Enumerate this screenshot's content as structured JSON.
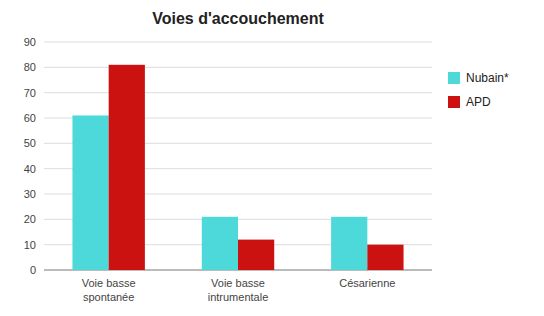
{
  "chart_data": {
    "type": "bar",
    "title": "Voies d'accouchement",
    "categories": [
      "Voie basse\nspontanée",
      "Voie basse\nintrumentale",
      "Césarienne"
    ],
    "series": [
      {
        "name": "Nubain*",
        "color": "#4DD9D9",
        "values": [
          61,
          21,
          21
        ]
      },
      {
        "name": "APD",
        "color": "#CC1111",
        "values": [
          81,
          12,
          10
        ]
      }
    ],
    "ylim": [
      0,
      90
    ],
    "yticks": [
      0,
      10,
      20,
      30,
      40,
      50,
      60,
      70,
      80,
      90
    ],
    "grid": true,
    "legend": "right"
  }
}
